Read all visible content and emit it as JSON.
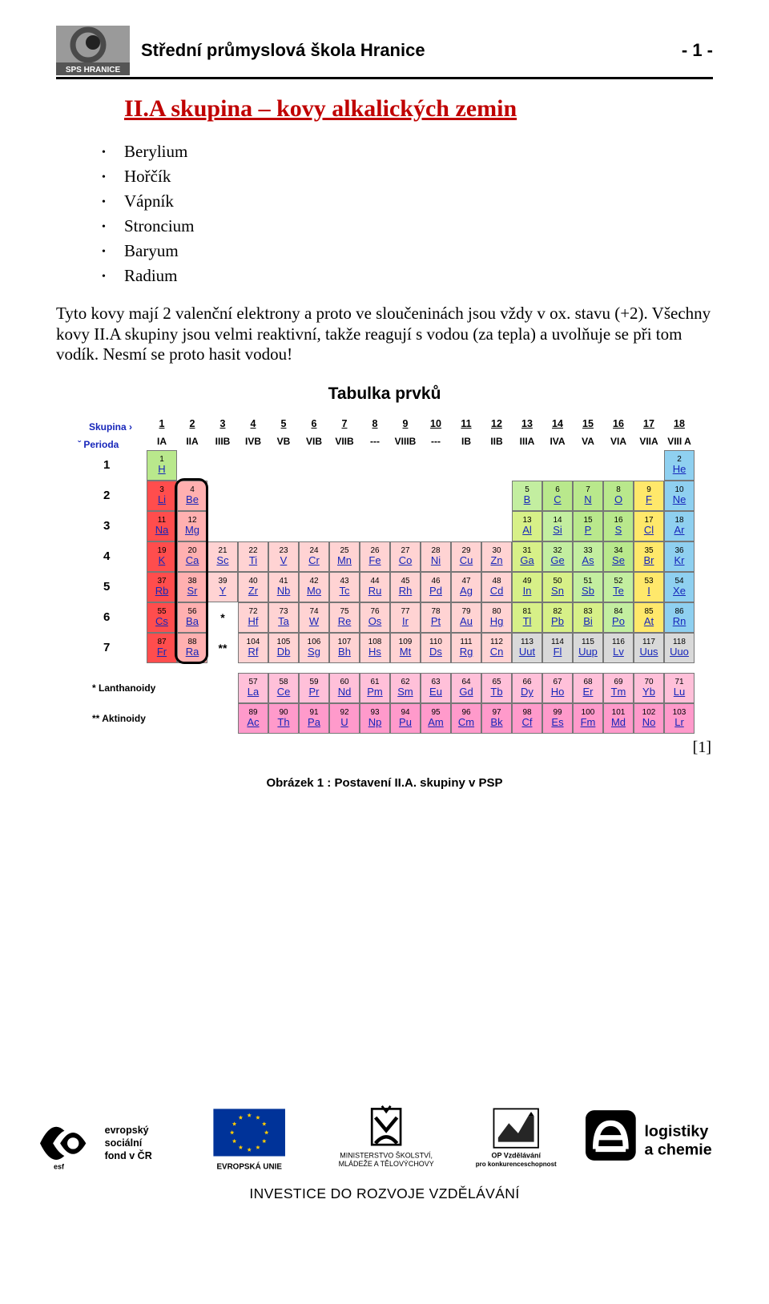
{
  "header": {
    "school_name": "Střední průmyslová škola Hranice",
    "page_indicator": "- 1 -",
    "logo_text": "SPS HRANICE",
    "logo_colors": {
      "bg": "#9a9a9a",
      "ring": "#4b4b4b",
      "dot": "#222222",
      "label_bg": "#555555",
      "label_fg": "#ffffff"
    }
  },
  "main_heading": "II.A skupina – kovy alkalických zemin",
  "heading_color": "#c00000",
  "bullets": [
    "Berylium",
    "Hořčík",
    "Vápník",
    "Stroncium",
    "Baryum",
    "Radium"
  ],
  "paragraph": "Tyto kovy mají 2 valenční elektrony a proto ve sloučeninách jsou vždy v ox. stavu (+2). Všechny kovy II.A skupiny jsou velmi reaktivní, takže reagují s vodou (za tepla) a uvolňuje se při tom vodík. Nesmí se proto hasit vodou!",
  "periodic_table": {
    "title": "Tabulka prvků",
    "group_label": "Skupina ›",
    "period_label": "ˇ  Perioda",
    "group_numbers": [
      "1",
      "2",
      "3",
      "4",
      "5",
      "6",
      "7",
      "8",
      "9",
      "10",
      "11",
      "12",
      "13",
      "14",
      "15",
      "16",
      "17",
      "18"
    ],
    "group_roman": [
      "IA",
      "IIA",
      "IIIB",
      "IVB",
      "VB",
      "VIB",
      "VIIB",
      "---",
      "VIIIB",
      "---",
      "IB",
      "IIB",
      "IIIA",
      "IVA",
      "VA",
      "VIA",
      "VIIA",
      "VIII A"
    ],
    "period_numbers": [
      "1",
      "2",
      "3",
      "4",
      "5",
      "6",
      "7"
    ],
    "lanth_label": "*  Lanthanoidy",
    "act_label": "**  Aktinoidy",
    "asterisk1": "*",
    "asterisk2": "**",
    "caption": "Obrázek 1 : Postavení II.A. skupiny v PSP",
    "reference": "[1]",
    "highlight_column": 2,
    "colors": {
      "alkali": "#ff4d4d",
      "alkaline": "#ffb0b0",
      "transition": "#ffd3d3",
      "metalloid": "#c3eea0",
      "nonmetal": "#b9e88c",
      "halogen": "#ffe86b",
      "noble": "#8fd0f0",
      "lanth": "#ffc0d9",
      "act": "#ff9acb",
      "posttrans": "#d7f088",
      "unknown": "#d9d9d9",
      "boron_group": "#e8f28a"
    },
    "rows": [
      [
        {
          "n": "1",
          "s": "H",
          "c": "nonmetal"
        },
        null,
        null,
        null,
        null,
        null,
        null,
        null,
        null,
        null,
        null,
        null,
        null,
        null,
        null,
        null,
        null,
        {
          "n": "2",
          "s": "He",
          "c": "noble"
        }
      ],
      [
        {
          "n": "3",
          "s": "Li",
          "c": "alkali"
        },
        {
          "n": "4",
          "s": "Be",
          "c": "alkaline"
        },
        null,
        null,
        null,
        null,
        null,
        null,
        null,
        null,
        null,
        null,
        {
          "n": "5",
          "s": "B",
          "c": "metalloid"
        },
        {
          "n": "6",
          "s": "C",
          "c": "nonmetal"
        },
        {
          "n": "7",
          "s": "N",
          "c": "nonmetal"
        },
        {
          "n": "8",
          "s": "O",
          "c": "nonmetal"
        },
        {
          "n": "9",
          "s": "F",
          "c": "halogen"
        },
        {
          "n": "10",
          "s": "Ne",
          "c": "noble"
        }
      ],
      [
        {
          "n": "11",
          "s": "Na",
          "c": "alkali"
        },
        {
          "n": "12",
          "s": "Mg",
          "c": "alkaline"
        },
        null,
        null,
        null,
        null,
        null,
        null,
        null,
        null,
        null,
        null,
        {
          "n": "13",
          "s": "Al",
          "c": "posttrans"
        },
        {
          "n": "14",
          "s": "Si",
          "c": "metalloid"
        },
        {
          "n": "15",
          "s": "P",
          "c": "nonmetal"
        },
        {
          "n": "16",
          "s": "S",
          "c": "nonmetal"
        },
        {
          "n": "17",
          "s": "Cl",
          "c": "halogen"
        },
        {
          "n": "18",
          "s": "Ar",
          "c": "noble"
        }
      ],
      [
        {
          "n": "19",
          "s": "K",
          "c": "alkali"
        },
        {
          "n": "20",
          "s": "Ca",
          "c": "alkaline"
        },
        {
          "n": "21",
          "s": "Sc",
          "c": "transition"
        },
        {
          "n": "22",
          "s": "Ti",
          "c": "transition"
        },
        {
          "n": "23",
          "s": "V",
          "c": "transition"
        },
        {
          "n": "24",
          "s": "Cr",
          "c": "transition"
        },
        {
          "n": "25",
          "s": "Mn",
          "c": "transition"
        },
        {
          "n": "26",
          "s": "Fe",
          "c": "transition"
        },
        {
          "n": "27",
          "s": "Co",
          "c": "transition"
        },
        {
          "n": "28",
          "s": "Ni",
          "c": "transition"
        },
        {
          "n": "29",
          "s": "Cu",
          "c": "transition"
        },
        {
          "n": "30",
          "s": "Zn",
          "c": "transition"
        },
        {
          "n": "31",
          "s": "Ga",
          "c": "posttrans"
        },
        {
          "n": "32",
          "s": "Ge",
          "c": "metalloid"
        },
        {
          "n": "33",
          "s": "As",
          "c": "metalloid"
        },
        {
          "n": "34",
          "s": "Se",
          "c": "nonmetal"
        },
        {
          "n": "35",
          "s": "Br",
          "c": "halogen"
        },
        {
          "n": "36",
          "s": "Kr",
          "c": "noble"
        }
      ],
      [
        {
          "n": "37",
          "s": "Rb",
          "c": "alkali"
        },
        {
          "n": "38",
          "s": "Sr",
          "c": "alkaline"
        },
        {
          "n": "39",
          "s": "Y",
          "c": "transition"
        },
        {
          "n": "40",
          "s": "Zr",
          "c": "transition"
        },
        {
          "n": "41",
          "s": "Nb",
          "c": "transition"
        },
        {
          "n": "42",
          "s": "Mo",
          "c": "transition"
        },
        {
          "n": "43",
          "s": "Tc",
          "c": "transition"
        },
        {
          "n": "44",
          "s": "Ru",
          "c": "transition"
        },
        {
          "n": "45",
          "s": "Rh",
          "c": "transition"
        },
        {
          "n": "46",
          "s": "Pd",
          "c": "transition"
        },
        {
          "n": "47",
          "s": "Ag",
          "c": "transition"
        },
        {
          "n": "48",
          "s": "Cd",
          "c": "transition"
        },
        {
          "n": "49",
          "s": "In",
          "c": "posttrans"
        },
        {
          "n": "50",
          "s": "Sn",
          "c": "posttrans"
        },
        {
          "n": "51",
          "s": "Sb",
          "c": "metalloid"
        },
        {
          "n": "52",
          "s": "Te",
          "c": "metalloid"
        },
        {
          "n": "53",
          "s": "I",
          "c": "halogen"
        },
        {
          "n": "54",
          "s": "Xe",
          "c": "noble"
        }
      ],
      [
        {
          "n": "55",
          "s": "Cs",
          "c": "alkali"
        },
        {
          "n": "56",
          "s": "Ba",
          "c": "alkaline"
        },
        {
          "n": "*",
          "s": "",
          "c": "blank"
        },
        {
          "n": "72",
          "s": "Hf",
          "c": "transition"
        },
        {
          "n": "73",
          "s": "Ta",
          "c": "transition"
        },
        {
          "n": "74",
          "s": "W",
          "c": "transition"
        },
        {
          "n": "75",
          "s": "Re",
          "c": "transition"
        },
        {
          "n": "76",
          "s": "Os",
          "c": "transition"
        },
        {
          "n": "77",
          "s": "Ir",
          "c": "transition"
        },
        {
          "n": "78",
          "s": "Pt",
          "c": "transition"
        },
        {
          "n": "79",
          "s": "Au",
          "c": "transition"
        },
        {
          "n": "80",
          "s": "Hg",
          "c": "transition"
        },
        {
          "n": "81",
          "s": "Tl",
          "c": "posttrans"
        },
        {
          "n": "82",
          "s": "Pb",
          "c": "posttrans"
        },
        {
          "n": "83",
          "s": "Bi",
          "c": "posttrans"
        },
        {
          "n": "84",
          "s": "Po",
          "c": "metalloid"
        },
        {
          "n": "85",
          "s": "At",
          "c": "halogen"
        },
        {
          "n": "86",
          "s": "Rn",
          "c": "noble"
        }
      ],
      [
        {
          "n": "87",
          "s": "Fr",
          "c": "alkali"
        },
        {
          "n": "88",
          "s": "Ra",
          "c": "alkaline"
        },
        {
          "n": "**",
          "s": "",
          "c": "blank"
        },
        {
          "n": "104",
          "s": "Rf",
          "c": "transition"
        },
        {
          "n": "105",
          "s": "Db",
          "c": "transition"
        },
        {
          "n": "106",
          "s": "Sg",
          "c": "transition"
        },
        {
          "n": "107",
          "s": "Bh",
          "c": "transition"
        },
        {
          "n": "108",
          "s": "Hs",
          "c": "transition"
        },
        {
          "n": "109",
          "s": "Mt",
          "c": "transition"
        },
        {
          "n": "110",
          "s": "Ds",
          "c": "transition"
        },
        {
          "n": "111",
          "s": "Rg",
          "c": "transition"
        },
        {
          "n": "112",
          "s": "Cn",
          "c": "transition"
        },
        {
          "n": "113",
          "s": "Uut",
          "c": "unknown"
        },
        {
          "n": "114",
          "s": "Fl",
          "c": "unknown"
        },
        {
          "n": "115",
          "s": "Uup",
          "c": "unknown"
        },
        {
          "n": "116",
          "s": "Lv",
          "c": "unknown"
        },
        {
          "n": "117",
          "s": "Uus",
          "c": "unknown"
        },
        {
          "n": "118",
          "s": "Uuo",
          "c": "unknown"
        }
      ]
    ],
    "lanthanides": [
      {
        "n": "57",
        "s": "La"
      },
      {
        "n": "58",
        "s": "Ce"
      },
      {
        "n": "59",
        "s": "Pr"
      },
      {
        "n": "60",
        "s": "Nd"
      },
      {
        "n": "61",
        "s": "Pm"
      },
      {
        "n": "62",
        "s": "Sm"
      },
      {
        "n": "63",
        "s": "Eu"
      },
      {
        "n": "64",
        "s": "Gd"
      },
      {
        "n": "65",
        "s": "Tb"
      },
      {
        "n": "66",
        "s": "Dy"
      },
      {
        "n": "67",
        "s": "Ho"
      },
      {
        "n": "68",
        "s": "Er"
      },
      {
        "n": "69",
        "s": "Tm"
      },
      {
        "n": "70",
        "s": "Yb"
      },
      {
        "n": "71",
        "s": "Lu"
      }
    ],
    "actinides": [
      {
        "n": "89",
        "s": "Ac"
      },
      {
        "n": "90",
        "s": "Th"
      },
      {
        "n": "91",
        "s": "Pa"
      },
      {
        "n": "92",
        "s": "U"
      },
      {
        "n": "93",
        "s": "Np"
      },
      {
        "n": "94",
        "s": "Pu"
      },
      {
        "n": "95",
        "s": "Am"
      },
      {
        "n": "96",
        "s": "Cm"
      },
      {
        "n": "97",
        "s": "Bk"
      },
      {
        "n": "98",
        "s": "Cf"
      },
      {
        "n": "99",
        "s": "Es"
      },
      {
        "n": "100",
        "s": "Fm"
      },
      {
        "n": "101",
        "s": "Md"
      },
      {
        "n": "102",
        "s": "No"
      },
      {
        "n": "103",
        "s": "Lr"
      }
    ]
  },
  "footer": {
    "tagline": "INVESTICE DO ROZVOJE VZDĚLÁVÁNÍ",
    "esf_text1": "evropský",
    "esf_text2": "sociální",
    "esf_text3": "fond v ČR",
    "eu_label": "EVROPSKÁ UNIE",
    "msmt_line1": "MINISTERSTVO ŠKOLSTVÍ,",
    "msmt_line2": "MLÁDEŽE A TĚLOVÝCHOVY",
    "op_line1": "OP Vzdělávání",
    "op_line2": "pro konkurenceschopnost",
    "right_line1": "logistiky",
    "right_line2": "a chemie"
  }
}
